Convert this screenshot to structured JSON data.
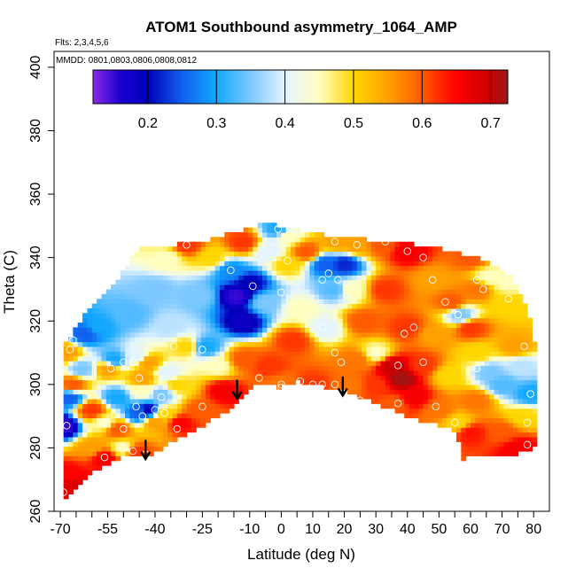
{
  "chart_data": {
    "type": "heatmap",
    "title": "ATOM1 Southbound asymmetry_1064_AMP",
    "xlabel": "Latitude (deg N)",
    "ylabel": "Theta (C)",
    "annotations": {
      "flights": "Flts: 2,3,4,5,6",
      "dates": "MMDD: 0801,0803,0806,0808,0812"
    },
    "xlim": [
      -72,
      85
    ],
    "ylim": [
      260,
      405
    ],
    "x_ticks": [
      -70,
      -55,
      -40,
      -25,
      -10,
      0,
      10,
      20,
      30,
      40,
      50,
      60,
      70,
      80
    ],
    "x_tick_labels": [
      "-70",
      "-55",
      "-40",
      "-25",
      "-10",
      "0",
      "10",
      "20",
      "30",
      "40",
      "50",
      "60",
      "70",
      "80"
    ],
    "x_minor_ticks": [
      -65,
      -60,
      -50,
      -45,
      -35,
      -30,
      -20,
      -15,
      -5,
      5,
      15,
      25,
      35,
      45,
      55,
      65,
      75
    ],
    "y_ticks": [
      260,
      280,
      300,
      320,
      340,
      360,
      380,
      400
    ],
    "y_tick_labels": [
      "260",
      "280",
      "300",
      "320",
      "340",
      "360",
      "380",
      "400"
    ],
    "colorbar": {
      "range": [
        0.12,
        0.725
      ],
      "ticks": [
        0.2,
        0.3,
        0.4,
        0.5,
        0.6,
        0.7
      ],
      "tick_labels": [
        "0.2",
        "0.3",
        "0.4",
        "0.5",
        "0.6",
        "0.7"
      ],
      "stops": [
        {
          "v": 0.12,
          "color": "#8a2be2"
        },
        {
          "v": 0.16,
          "color": "#1a00d0"
        },
        {
          "v": 0.2,
          "color": "#0000b8"
        },
        {
          "v": 0.25,
          "color": "#1060f0"
        },
        {
          "v": 0.3,
          "color": "#14a8ff"
        },
        {
          "v": 0.35,
          "color": "#7cc8ff"
        },
        {
          "v": 0.4,
          "color": "#e4f4ff"
        },
        {
          "v": 0.45,
          "color": "#ffffc0"
        },
        {
          "v": 0.5,
          "color": "#ffd700"
        },
        {
          "v": 0.55,
          "color": "#ffa000"
        },
        {
          "v": 0.6,
          "color": "#ff5a00"
        },
        {
          "v": 0.65,
          "color": "#ff0000"
        },
        {
          "v": 0.7,
          "color": "#c80000"
        },
        {
          "v": 0.725,
          "color": "#9a1a1a"
        }
      ]
    },
    "domain_top": [
      [
        -69,
        312
      ],
      [
        -65,
        318
      ],
      [
        -60,
        325
      ],
      [
        -52,
        333
      ],
      [
        -45,
        343
      ],
      [
        -35,
        344
      ],
      [
        -25,
        345
      ],
      [
        -15,
        348
      ],
      [
        -5,
        351
      ],
      [
        5,
        349
      ],
      [
        15,
        347
      ],
      [
        25,
        346
      ],
      [
        35,
        345
      ],
      [
        45,
        344
      ],
      [
        55,
        342
      ],
      [
        65,
        339
      ],
      [
        73,
        334
      ],
      [
        77,
        327
      ],
      [
        79,
        320
      ],
      [
        80,
        313
      ]
    ],
    "domain_bottom": [
      [
        -69,
        264
      ],
      [
        -65,
        268
      ],
      [
        -60,
        272
      ],
      [
        -50,
        277
      ],
      [
        -42,
        277
      ],
      [
        -35,
        282
      ],
      [
        -25,
        287
      ],
      [
        -15,
        293
      ],
      [
        -8,
        300
      ],
      [
        0,
        299
      ],
      [
        5,
        301
      ],
      [
        10,
        300
      ],
      [
        20,
        298
      ],
      [
        30,
        294
      ],
      [
        40,
        290
      ],
      [
        50,
        287
      ],
      [
        56,
        285
      ],
      [
        57,
        276
      ],
      [
        60,
        278
      ],
      [
        75,
        278
      ],
      [
        80,
        280
      ]
    ],
    "samples": [
      {
        "x": -69,
        "y": 287,
        "v": 0.15
      },
      {
        "x": -67,
        "y": 296,
        "v": 0.25
      },
      {
        "x": -63,
        "y": 305,
        "v": 0.35
      },
      {
        "x": -68,
        "y": 310,
        "v": 0.55
      },
      {
        "x": -66,
        "y": 300,
        "v": 0.6
      },
      {
        "x": -68,
        "y": 272,
        "v": 0.65
      },
      {
        "x": -66,
        "y": 268,
        "v": 0.68
      },
      {
        "x": -60,
        "y": 280,
        "v": 0.55
      },
      {
        "x": -56,
        "y": 277,
        "v": 0.66
      },
      {
        "x": -56,
        "y": 288,
        "v": 0.45
      },
      {
        "x": -60,
        "y": 292,
        "v": 0.62
      },
      {
        "x": -55,
        "y": 305,
        "v": 0.55
      },
      {
        "x": -52,
        "y": 296,
        "v": 0.3
      },
      {
        "x": -52,
        "y": 286,
        "v": 0.6
      },
      {
        "x": -50,
        "y": 280,
        "v": 0.45
      },
      {
        "x": -46,
        "y": 279,
        "v": 0.62
      },
      {
        "x": -45,
        "y": 291,
        "v": 0.25
      },
      {
        "x": -44,
        "y": 298,
        "v": 0.45
      },
      {
        "x": -42,
        "y": 292,
        "v": 0.2
      },
      {
        "x": -40,
        "y": 288,
        "v": 0.55
      },
      {
        "x": -38,
        "y": 297,
        "v": 0.35
      },
      {
        "x": -44,
        "y": 302,
        "v": 0.55
      },
      {
        "x": -37,
        "y": 291,
        "v": 0.5
      },
      {
        "x": -32,
        "y": 288,
        "v": 0.65
      },
      {
        "x": -33,
        "y": 300,
        "v": 0.5
      },
      {
        "x": -36,
        "y": 304,
        "v": 0.4
      },
      {
        "x": -26,
        "y": 292,
        "v": 0.6
      },
      {
        "x": -18,
        "y": 298,
        "v": 0.66
      },
      {
        "x": -20,
        "y": 306,
        "v": 0.45
      },
      {
        "x": -42,
        "y": 307,
        "v": 0.55
      },
      {
        "x": -46,
        "y": 309,
        "v": 0.4
      },
      {
        "x": -53,
        "y": 308,
        "v": 0.3
      },
      {
        "x": -58,
        "y": 318,
        "v": 0.3
      },
      {
        "x": -48,
        "y": 322,
        "v": 0.33
      },
      {
        "x": -40,
        "y": 330,
        "v": 0.35
      },
      {
        "x": -36,
        "y": 340,
        "v": 0.45
      },
      {
        "x": -30,
        "y": 344,
        "v": 0.62
      },
      {
        "x": -22,
        "y": 340,
        "v": 0.5
      },
      {
        "x": -26,
        "y": 328,
        "v": 0.35
      },
      {
        "x": -35,
        "y": 318,
        "v": 0.38
      },
      {
        "x": -30,
        "y": 312,
        "v": 0.5
      },
      {
        "x": -24,
        "y": 312,
        "v": 0.3
      },
      {
        "x": -14,
        "y": 328,
        "v": 0.15
      },
      {
        "x": -12,
        "y": 320,
        "v": 0.18
      },
      {
        "x": -10,
        "y": 332,
        "v": 0.2
      },
      {
        "x": -16,
        "y": 336,
        "v": 0.28
      },
      {
        "x": -5,
        "y": 326,
        "v": 0.35
      },
      {
        "x": -4,
        "y": 342,
        "v": 0.4
      },
      {
        "x": -12,
        "y": 345,
        "v": 0.62
      },
      {
        "x": -1,
        "y": 349,
        "v": 0.3
      },
      {
        "x": 2,
        "y": 347,
        "v": 0.45
      },
      {
        "x": 2,
        "y": 338,
        "v": 0.5
      },
      {
        "x": 6,
        "y": 324,
        "v": 0.45
      },
      {
        "x": 4,
        "y": 314,
        "v": 0.62
      },
      {
        "x": -4,
        "y": 306,
        "v": 0.62
      },
      {
        "x": -12,
        "y": 308,
        "v": 0.6
      },
      {
        "x": 0,
        "y": 300,
        "v": 0.58
      },
      {
        "x": 10,
        "y": 300,
        "v": 0.62
      },
      {
        "x": 14,
        "y": 318,
        "v": 0.4
      },
      {
        "x": 17,
        "y": 330,
        "v": 0.33
      },
      {
        "x": 14,
        "y": 338,
        "v": 0.25
      },
      {
        "x": 20,
        "y": 338,
        "v": 0.22
      },
      {
        "x": 22,
        "y": 330,
        "v": 0.45
      },
      {
        "x": 18,
        "y": 345,
        "v": 0.55
      },
      {
        "x": 8,
        "y": 342,
        "v": 0.6
      },
      {
        "x": 24,
        "y": 344,
        "v": 0.55
      },
      {
        "x": 26,
        "y": 320,
        "v": 0.6
      },
      {
        "x": 24,
        "y": 308,
        "v": 0.58
      },
      {
        "x": 30,
        "y": 310,
        "v": 0.45
      },
      {
        "x": 30,
        "y": 300,
        "v": 0.62
      },
      {
        "x": 35,
        "y": 306,
        "v": 0.7
      },
      {
        "x": 38,
        "y": 302,
        "v": 0.72
      },
      {
        "x": 42,
        "y": 296,
        "v": 0.66
      },
      {
        "x": 45,
        "y": 306,
        "v": 0.62
      },
      {
        "x": 40,
        "y": 318,
        "v": 0.62
      },
      {
        "x": 33,
        "y": 330,
        "v": 0.62
      },
      {
        "x": 32,
        "y": 344,
        "v": 0.6
      },
      {
        "x": 40,
        "y": 342,
        "v": 0.66
      },
      {
        "x": 48,
        "y": 333,
        "v": 0.55
      },
      {
        "x": 48,
        "y": 316,
        "v": 0.55
      },
      {
        "x": 50,
        "y": 292,
        "v": 0.58
      },
      {
        "x": 53,
        "y": 303,
        "v": 0.5
      },
      {
        "x": 57,
        "y": 322,
        "v": 0.35
      },
      {
        "x": 54,
        "y": 326,
        "v": 0.6
      },
      {
        "x": 62,
        "y": 330,
        "v": 0.58
      },
      {
        "x": 60,
        "y": 318,
        "v": 0.62
      },
      {
        "x": 62,
        "y": 310,
        "v": 0.5
      },
      {
        "x": 66,
        "y": 304,
        "v": 0.35
      },
      {
        "x": 70,
        "y": 300,
        "v": 0.33
      },
      {
        "x": 74,
        "y": 312,
        "v": 0.55
      },
      {
        "x": 72,
        "y": 326,
        "v": 0.5
      },
      {
        "x": 76,
        "y": 306,
        "v": 0.38
      },
      {
        "x": 79,
        "y": 297,
        "v": 0.3
      },
      {
        "x": 77,
        "y": 290,
        "v": 0.5
      },
      {
        "x": 62,
        "y": 295,
        "v": 0.58
      },
      {
        "x": 60,
        "y": 285,
        "v": 0.64
      },
      {
        "x": 70,
        "y": 285,
        "v": 0.6
      },
      {
        "x": 75,
        "y": 280,
        "v": 0.66
      },
      {
        "x": 56,
        "y": 288,
        "v": 0.5
      },
      {
        "x": 36,
        "y": 294,
        "v": 0.6
      },
      {
        "x": 22,
        "y": 300,
        "v": 0.58
      },
      {
        "x": 66,
        "y": 334,
        "v": 0.45
      },
      {
        "x": 72,
        "y": 332,
        "v": 0.45
      },
      {
        "x": 60,
        "y": 340,
        "v": 0.6
      },
      {
        "x": -62,
        "y": 316,
        "v": 0.25
      }
    ],
    "flight_markers": [
      {
        "x": -66,
        "y": 314
      },
      {
        "x": -67,
        "y": 311
      },
      {
        "x": -68,
        "y": 287
      },
      {
        "x": -69,
        "y": 266
      },
      {
        "x": -54,
        "y": 305
      },
      {
        "x": -50,
        "y": 307
      },
      {
        "x": -47,
        "y": 307
      },
      {
        "x": -45,
        "y": 302
      },
      {
        "x": -56,
        "y": 288
      },
      {
        "x": -50,
        "y": 286
      },
      {
        "x": -46,
        "y": 293
      },
      {
        "x": -44,
        "y": 290
      },
      {
        "x": -40,
        "y": 292
      },
      {
        "x": -38,
        "y": 296
      },
      {
        "x": -33,
        "y": 286
      },
      {
        "x": -25,
        "y": 293
      },
      {
        "x": -56,
        "y": 277
      },
      {
        "x": -50,
        "y": 280
      },
      {
        "x": -47,
        "y": 279
      },
      {
        "x": -43,
        "y": 278
      },
      {
        "x": -34,
        "y": 312
      },
      {
        "x": -25,
        "y": 311
      },
      {
        "x": -16,
        "y": 336
      },
      {
        "x": -9,
        "y": 331
      },
      {
        "x": -30,
        "y": 344
      },
      {
        "x": -1,
        "y": 349
      },
      {
        "x": 2,
        "y": 339
      },
      {
        "x": 0,
        "y": 329
      },
      {
        "x": -7,
        "y": 302
      },
      {
        "x": 0,
        "y": 300
      },
      {
        "x": 0,
        "y": 299
      },
      {
        "x": 6,
        "y": 301
      },
      {
        "x": 10,
        "y": 300
      },
      {
        "x": 13,
        "y": 300
      },
      {
        "x": 17,
        "y": 300
      },
      {
        "x": 17,
        "y": 345
      },
      {
        "x": 13,
        "y": 333
      },
      {
        "x": 15,
        "y": 335
      },
      {
        "x": 18,
        "y": 333
      },
      {
        "x": 24,
        "y": 344
      },
      {
        "x": 33,
        "y": 345
      },
      {
        "x": 40,
        "y": 342
      },
      {
        "x": 13,
        "y": 318
      },
      {
        "x": 17,
        "y": 310
      },
      {
        "x": 19,
        "y": 307
      },
      {
        "x": 25,
        "y": 295
      },
      {
        "x": 30,
        "y": 310
      },
      {
        "x": 37,
        "y": 294
      },
      {
        "x": 37,
        "y": 306
      },
      {
        "x": 45,
        "y": 307
      },
      {
        "x": 49,
        "y": 293
      },
      {
        "x": 45,
        "y": 340
      },
      {
        "x": 48,
        "y": 333
      },
      {
        "x": 52,
        "y": 326
      },
      {
        "x": 56,
        "y": 322
      },
      {
        "x": 42,
        "y": 318
      },
      {
        "x": 39,
        "y": 316
      },
      {
        "x": 55,
        "y": 288
      },
      {
        "x": 62,
        "y": 305
      },
      {
        "x": 64,
        "y": 330
      },
      {
        "x": 72,
        "y": 327
      },
      {
        "x": 77,
        "y": 312
      },
      {
        "x": 79,
        "y": 297
      },
      {
        "x": 78,
        "y": 288
      },
      {
        "x": 78,
        "y": 281
      },
      {
        "x": 56,
        "y": 322
      },
      {
        "x": 62,
        "y": 333
      },
      {
        "x": -37,
        "y": 291
      }
    ],
    "arrows": [
      {
        "x": -43,
        "y_from": 282.5,
        "y_to": 276.5
      },
      {
        "x": -14,
        "y_from": 301.5,
        "y_to": 295.5
      },
      {
        "x": 19.5,
        "y_from": 302.5,
        "y_to": 296.5
      }
    ]
  }
}
